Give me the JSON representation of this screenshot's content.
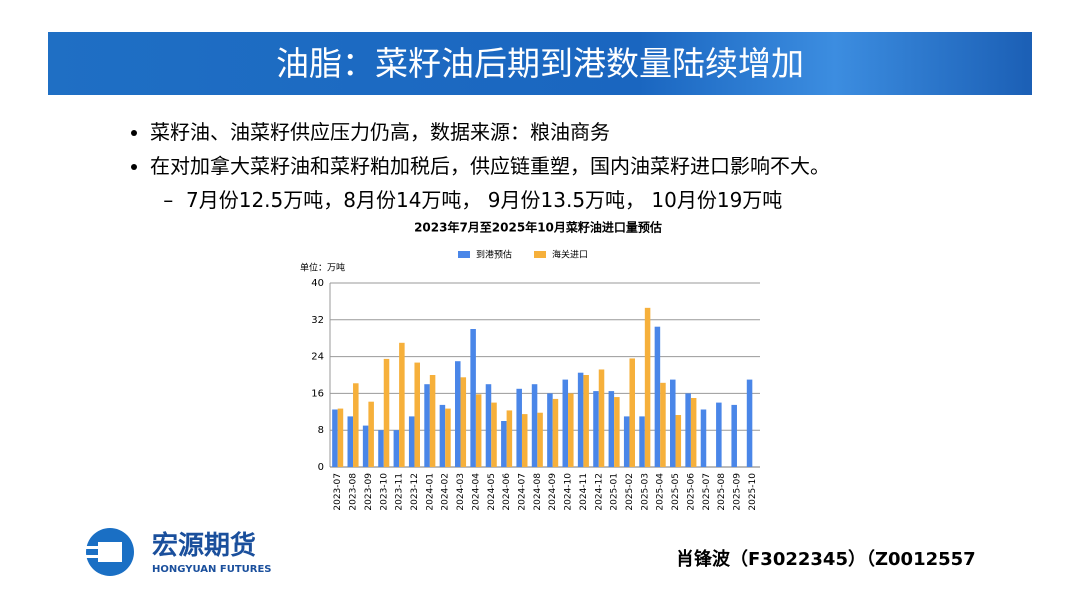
{
  "header": {
    "title": "油脂：菜籽油后期到港数量陆续增加"
  },
  "bullets": [
    "菜籽油、油菜籽供应压力仍高，数据来源：粮油商务",
    "在对加拿大菜籽油和菜籽粕加税后，供应链重塑，国内油菜籽进口影响不大。"
  ],
  "sub_bullets": [
    "7月份12.5万吨，8月份14万吨， 9月份13.5万吨， 10月份19万吨"
  ],
  "chart_data": {
    "type": "bar",
    "title": "2023年7月至2025年10月菜籽油进口量预估",
    "unit_label": "单位：万吨",
    "categories": [
      "2023-07",
      "2023-08",
      "2023-09",
      "2023-10",
      "2023-11",
      "2023-12",
      "2024-01",
      "2024-02",
      "2024-03",
      "2024-04",
      "2024-05",
      "2024-06",
      "2024-07",
      "2024-08",
      "2024-09",
      "2024-10",
      "2024-11",
      "2024-12",
      "2025-01",
      "2025-02",
      "2025-03",
      "2025-04",
      "2025-05",
      "2025-06",
      "2025-07",
      "2025-08",
      "2025-09",
      "2025-10"
    ],
    "series": [
      {
        "name": "到港预估",
        "color": "#4a86e8",
        "values": [
          12.5,
          11,
          9,
          8,
          8,
          11,
          18,
          13.5,
          23,
          30,
          18,
          10,
          17,
          18,
          16,
          19,
          20.5,
          16.5,
          16.5,
          11,
          11,
          30.5,
          19,
          16,
          12.5,
          14,
          13.5,
          19
        ]
      },
      {
        "name": "海关进口",
        "color": "#f6b03b",
        "values": [
          12.7,
          18.2,
          14.2,
          23.5,
          27,
          22.7,
          20,
          12.7,
          19.5,
          15.8,
          14,
          12.3,
          11.5,
          11.8,
          14.8,
          16,
          20,
          21.2,
          15.2,
          23.6,
          34.6,
          18.3,
          11.3,
          15,
          null,
          null,
          null,
          null
        ]
      }
    ],
    "ylim": [
      0,
      40
    ],
    "yticks": [
      0,
      8,
      16,
      24,
      32,
      40
    ],
    "grid": true
  },
  "footer": {
    "logo_cn": "宏源期货",
    "logo_en": "HONGYUAN FUTURES",
    "author": "肖锋波（F3022345）（Z0012557"
  }
}
